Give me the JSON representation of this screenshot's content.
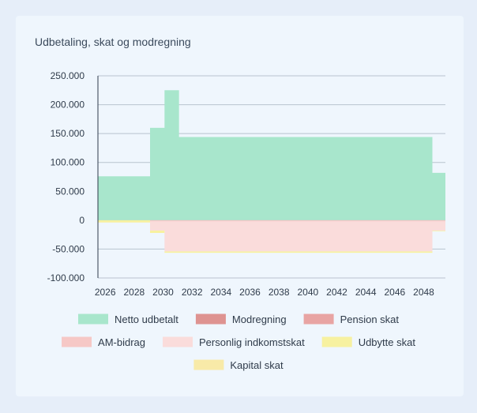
{
  "card": {
    "title": "Udbetaling, skat og modregning"
  },
  "chart_data": {
    "type": "area",
    "title": "Udbetaling, skat og modregning",
    "xlabel": "",
    "ylabel": "",
    "xlim": [
      2025.5,
      2049.5
    ],
    "ylim": [
      -100000,
      250000
    ],
    "y_ticks": [
      250000,
      200000,
      150000,
      100000,
      50000,
      0,
      -50000,
      -100000
    ],
    "y_tick_labels": [
      "250.000",
      "200.000",
      "150.000",
      "100.000",
      "50.000",
      "0",
      "-50.000",
      "-100.000"
    ],
    "x_tick_labels": [
      "2026",
      "2028",
      "2030",
      "2032",
      "2034",
      "2036",
      "2038",
      "2040",
      "2042",
      "2044",
      "2046",
      "2048"
    ],
    "x_ticks": [
      2026,
      2028,
      2030,
      2032,
      2034,
      2036,
      2038,
      2040,
      2042,
      2044,
      2046,
      2048
    ],
    "step": true,
    "grid": true,
    "legend_position": "bottom",
    "series": [
      {
        "name": "Netto udbetalt",
        "color": "#a8e6cc",
        "points": [
          [
            2025.5,
            76000
          ],
          [
            2029.1,
            160000
          ],
          [
            2030.1,
            225000
          ],
          [
            2031.1,
            144000
          ],
          [
            2048.6,
            82000
          ],
          [
            2049.5,
            82000
          ]
        ]
      },
      {
        "name": "Modregning",
        "color": "#de9391",
        "points": []
      },
      {
        "name": "Pension skat",
        "color": "#e8a4a3",
        "points": []
      },
      {
        "name": "AM-bidrag",
        "color": "#f6c8c6",
        "points": [
          [
            2025.5,
            0
          ],
          [
            2029.1,
            -2000
          ],
          [
            2030.1,
            -2000
          ],
          [
            2048.6,
            -2000
          ],
          [
            2049.5,
            -2000
          ]
        ]
      },
      {
        "name": "Personlig indkomstskat",
        "color": "#fadcdb",
        "points": [
          [
            2025.5,
            0
          ],
          [
            2029.1,
            -16000
          ],
          [
            2030.1,
            -52000
          ],
          [
            2048.6,
            -16000
          ],
          [
            2049.5,
            -16000
          ]
        ]
      },
      {
        "name": "Udbytte skat",
        "color": "#f7f1a0",
        "points": [
          [
            2025.5,
            -4000
          ],
          [
            2029.1,
            -4000
          ],
          [
            2030.1,
            -2500
          ],
          [
            2048.6,
            -1000
          ],
          [
            2049.5,
            -1000
          ]
        ]
      },
      {
        "name": "Kapital skat",
        "color": "#f8eaa8",
        "points": []
      }
    ],
    "legend": [
      {
        "name": "Netto udbetalt",
        "color": "#a8e6cc"
      },
      {
        "name": "Modregning",
        "color": "#de9391"
      },
      {
        "name": "Pension skat",
        "color": "#e8a4a3"
      },
      {
        "name": "AM-bidrag",
        "color": "#f6c8c6"
      },
      {
        "name": "Personlig indkomstskat",
        "color": "#fadcdb"
      },
      {
        "name": "Udbytte skat",
        "color": "#f7f1a0"
      },
      {
        "name": "Kapital skat",
        "color": "#f8eaa8"
      }
    ]
  }
}
